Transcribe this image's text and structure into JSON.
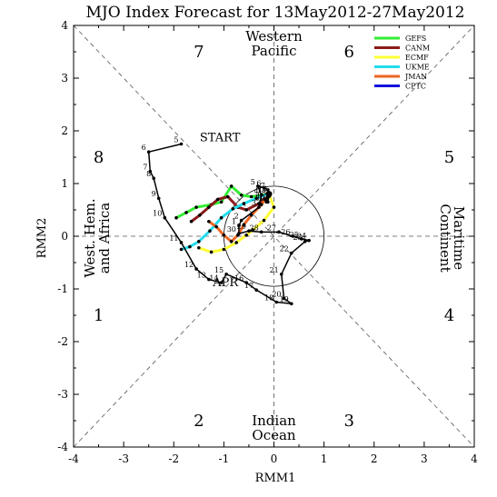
{
  "chart_data": {
    "type": "line",
    "title": "MJO Index Forecast for 13May2012-27May2012",
    "xlabel": "RMM1",
    "ylabel": "RMM2",
    "xlim": [
      -4,
      4
    ],
    "ylim": [
      -4,
      4
    ],
    "xticks": [
      "-4",
      "-3",
      "-2",
      "-1",
      "0",
      "1",
      "2",
      "3",
      "4"
    ],
    "yticks": [
      "-4",
      "-3",
      "-2",
      "-1",
      "0",
      "1",
      "2",
      "3",
      "4"
    ],
    "unit_circle_radius": 1,
    "phase_numbers": [
      {
        "label": "1",
        "x": -3.5,
        "y": -1.5
      },
      {
        "label": "2",
        "x": -1.5,
        "y": -3.5
      },
      {
        "label": "3",
        "x": 1.5,
        "y": -3.5
      },
      {
        "label": "4",
        "x": 3.5,
        "y": -1.5
      },
      {
        "label": "5",
        "x": 3.5,
        "y": 1.5
      },
      {
        "label": "6",
        "x": 1.5,
        "y": 3.5
      },
      {
        "label": "7",
        "x": -1.5,
        "y": 3.5
      },
      {
        "label": "8",
        "x": -3.5,
        "y": 1.5
      }
    ],
    "regions": {
      "top": [
        "Western",
        "Pacific"
      ],
      "bottom": [
        "Indian",
        "Ocean"
      ],
      "right": [
        "Maritime",
        "Continent"
      ],
      "left": [
        "West. Hem.",
        "and Africa"
      ]
    },
    "annotations": [
      "START",
      "APR"
    ],
    "legend_position": "top-right",
    "observed": {
      "color": "#000000",
      "points": [
        {
          "label": "5",
          "x": -1.85,
          "y": 1.75
        },
        {
          "label": "6",
          "x": -2.5,
          "y": 1.6
        },
        {
          "label": "7",
          "x": -2.47,
          "y": 1.23
        },
        {
          "label": "8",
          "x": -2.4,
          "y": 1.1
        },
        {
          "label": "9",
          "x": -2.3,
          "y": 0.72
        },
        {
          "label": "10",
          "x": -2.18,
          "y": 0.35
        },
        {
          "label": "11",
          "x": -1.85,
          "y": -0.12
        },
        {
          "label": "12",
          "x": -1.55,
          "y": -0.62
        },
        {
          "label": "13",
          "x": -1.3,
          "y": -0.82
        },
        {
          "label": "14",
          "x": -1.05,
          "y": -0.88
        },
        {
          "label": "15",
          "x": -0.95,
          "y": -0.72
        },
        {
          "label": "16",
          "x": -0.55,
          "y": -0.88
        },
        {
          "label": "17",
          "x": -0.35,
          "y": -1.02
        },
        {
          "label": "18",
          "x": 0.05,
          "y": -1.25
        },
        {
          "label": "19",
          "x": 0.35,
          "y": -1.28
        },
        {
          "label": "20",
          "x": 0.2,
          "y": -1.18
        },
        {
          "label": "21",
          "x": 0.15,
          "y": -0.72
        },
        {
          "label": "22",
          "x": 0.35,
          "y": -0.32
        },
        {
          "label": "23",
          "x": 0.62,
          "y": -0.1
        },
        {
          "label": "24",
          "x": 0.7,
          "y": -0.08
        },
        {
          "label": "25",
          "x": 0.55,
          "y": -0.05
        },
        {
          "label": "26",
          "x": 0.38,
          "y": 0.0
        },
        {
          "label": "27",
          "x": 0.1,
          "y": 0.08
        },
        {
          "label": "28",
          "x": -0.25,
          "y": 0.08
        },
        {
          "label": "29",
          "x": -0.5,
          "y": 0.1
        },
        {
          "label": "30",
          "x": -0.7,
          "y": 0.05
        },
        {
          "label": "1",
          "x": -0.7,
          "y": 0.2
        },
        {
          "label": "2",
          "x": -0.65,
          "y": 0.3
        },
        {
          "label": "3",
          "x": -0.3,
          "y": 0.55
        },
        {
          "label": "4",
          "x": -0.25,
          "y": 0.78
        },
        {
          "label": "5",
          "x": -0.32,
          "y": 0.95
        },
        {
          "label": "6",
          "x": -0.2,
          "y": 0.92
        },
        {
          "label": "7",
          "x": -0.12,
          "y": 0.88
        },
        {
          "label": "8",
          "x": -0.1,
          "y": 0.75
        },
        {
          "label": "9",
          "x": -0.18,
          "y": 0.7
        },
        {
          "label": "10",
          "x": -0.08,
          "y": 0.82
        },
        {
          "label": "11",
          "x": -0.15,
          "y": 0.65
        },
        {
          "label": "12",
          "x": -0.12,
          "y": 0.65
        },
        {
          "label": "13",
          "x": -0.1,
          "y": 0.8
        }
      ]
    },
    "series": [
      {
        "name": "GEFS",
        "color": "#33ee33",
        "points": [
          [
            -0.1,
            0.8
          ],
          [
            -0.45,
            0.75
          ],
          [
            -0.65,
            0.78
          ],
          [
            -0.85,
            0.95
          ],
          [
            -1.05,
            0.65
          ],
          [
            -1.25,
            0.6
          ],
          [
            -1.55,
            0.55
          ],
          [
            -1.75,
            0.45
          ],
          [
            -1.95,
            0.35
          ]
        ]
      },
      {
        "name": "CANM",
        "color": "#8b1a1a",
        "points": [
          [
            -0.1,
            0.8
          ],
          [
            -0.3,
            0.62
          ],
          [
            -0.55,
            0.5
          ],
          [
            -0.72,
            0.55
          ],
          [
            -0.92,
            0.75
          ],
          [
            -1.12,
            0.7
          ],
          [
            -1.3,
            0.55
          ],
          [
            -1.48,
            0.4
          ],
          [
            -1.65,
            0.28
          ]
        ]
      },
      {
        "name": "ECMF",
        "color": "#ffff33",
        "points": [
          [
            -0.1,
            0.8
          ],
          [
            0.0,
            0.55
          ],
          [
            -0.2,
            0.3
          ],
          [
            -0.42,
            0.12
          ],
          [
            -0.55,
            0.02
          ],
          [
            -0.75,
            -0.12
          ],
          [
            -1.0,
            -0.25
          ],
          [
            -1.25,
            -0.3
          ],
          [
            -1.5,
            -0.22
          ]
        ]
      },
      {
        "name": "UKME",
        "color": "#22ddee",
        "points": [
          [
            -0.1,
            0.8
          ],
          [
            -0.35,
            0.72
          ],
          [
            -0.6,
            0.62
          ],
          [
            -0.82,
            0.52
          ],
          [
            -1.05,
            0.35
          ],
          [
            -1.28,
            0.1
          ],
          [
            -1.5,
            -0.1
          ],
          [
            -1.68,
            -0.2
          ],
          [
            -1.85,
            -0.25
          ]
        ]
      },
      {
        "name": "JMAN",
        "color": "#ee6622",
        "points": [
          [
            -0.1,
            0.8
          ],
          [
            -0.25,
            0.6
          ],
          [
            -0.45,
            0.4
          ],
          [
            -0.6,
            0.22
          ],
          [
            -0.72,
            0.02
          ],
          [
            -0.85,
            -0.1
          ],
          [
            -1.0,
            0.02
          ],
          [
            -1.15,
            0.18
          ],
          [
            -1.3,
            0.28
          ]
        ]
      },
      {
        "name": "CPTC",
        "color": "#1111dd",
        "points": []
      }
    ]
  }
}
